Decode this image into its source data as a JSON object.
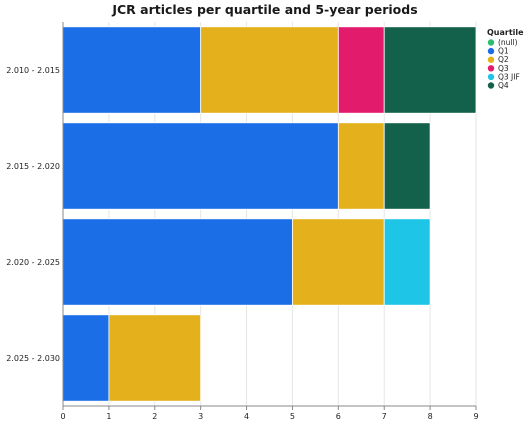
{
  "chart_data": {
    "type": "bar",
    "orientation": "horizontal",
    "stacked": true,
    "title": "JCR articles per quartile and 5-year periods",
    "xlabel": "",
    "ylabel": "",
    "xlim": [
      0,
      9
    ],
    "x_ticks": [
      "0",
      "1",
      "2",
      "3",
      "4",
      "5",
      "6",
      "7",
      "8",
      "9"
    ],
    "categories": [
      "2.010 - 2.015",
      "2.015 - 2.020",
      "2.020 - 2.025",
      "2.025 - 2.030"
    ],
    "legend_title": "Quartile",
    "legend_position": "top-right",
    "grid": true,
    "series": [
      {
        "name": "(null)",
        "color": "#2dbd6e",
        "values": [
          0,
          0,
          0,
          0
        ]
      },
      {
        "name": "Q1",
        "color": "#1c6ee6",
        "values": [
          3,
          6,
          5,
          1
        ]
      },
      {
        "name": "Q2",
        "color": "#e4b11d",
        "values": [
          3,
          1,
          2,
          2
        ]
      },
      {
        "name": "Q3",
        "color": "#e31b6d",
        "values": [
          1,
          0,
          0,
          0
        ]
      },
      {
        "name": "Q3 JIF",
        "color": "#1ec5e6",
        "values": [
          0,
          0,
          1,
          0
        ]
      },
      {
        "name": "Q4",
        "color": "#13614a",
        "values": [
          2,
          1,
          0,
          0
        ]
      }
    ]
  }
}
